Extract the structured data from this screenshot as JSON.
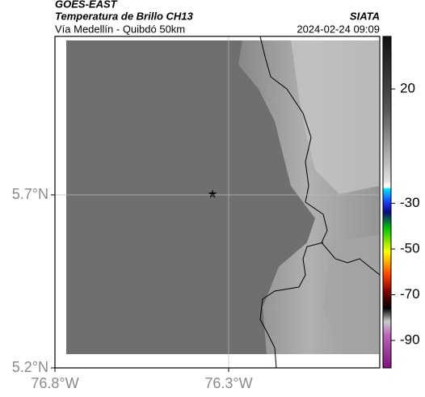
{
  "header": {
    "title": "GOES-EAST",
    "subtitle": "Temperatura de Brillo CH13",
    "source": "SIATA",
    "route": "Vía Medellín - Quibdó 50km",
    "datetime": "2024-02-24 09:09"
  },
  "map": {
    "xlim": [
      -76.8,
      -75.865
    ],
    "ylim": [
      5.2,
      6.158
    ],
    "xticks": [
      {
        "value": -76.8,
        "label": "76.8°W"
      },
      {
        "value": -76.3,
        "label": "76.3°W"
      }
    ],
    "yticks": [
      {
        "value": 5.7,
        "label": "5.7°N"
      },
      {
        "value": 5.2,
        "label": "5.2°N"
      }
    ],
    "grid": true
  },
  "colorbar": {
    "clim": [
      -102,
      43
    ],
    "ticks": [
      20,
      -30,
      -50,
      -70,
      -90
    ]
  }
}
